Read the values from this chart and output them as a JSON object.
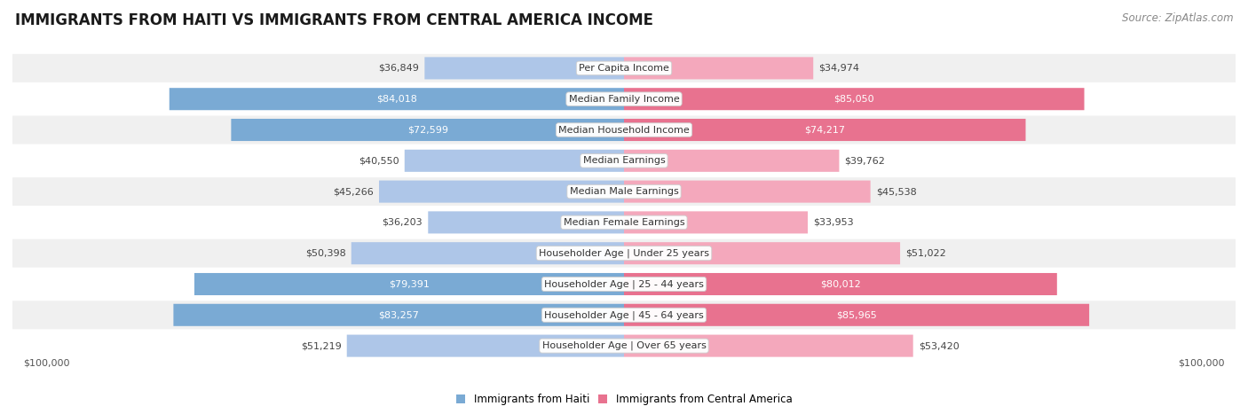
{
  "title": "IMMIGRANTS FROM HAITI VS IMMIGRANTS FROM CENTRAL AMERICA INCOME",
  "source": "Source: ZipAtlas.com",
  "categories": [
    "Per Capita Income",
    "Median Family Income",
    "Median Household Income",
    "Median Earnings",
    "Median Male Earnings",
    "Median Female Earnings",
    "Householder Age | Under 25 years",
    "Householder Age | 25 - 44 years",
    "Householder Age | 45 - 64 years",
    "Householder Age | Over 65 years"
  ],
  "haiti_values": [
    36849,
    84018,
    72599,
    40550,
    45266,
    36203,
    50398,
    79391,
    83257,
    51219
  ],
  "central_america_values": [
    34974,
    85050,
    74217,
    39762,
    45538,
    33953,
    51022,
    80012,
    85965,
    53420
  ],
  "haiti_labels": [
    "$36,849",
    "$84,018",
    "$72,599",
    "$40,550",
    "$45,266",
    "$36,203",
    "$50,398",
    "$79,391",
    "$83,257",
    "$51,219"
  ],
  "central_america_labels": [
    "$34,974",
    "$85,050",
    "$74,217",
    "$39,762",
    "$45,538",
    "$33,953",
    "$51,022",
    "$80,012",
    "$85,965",
    "$53,420"
  ],
  "haiti_color_light": "#aec6e8",
  "haiti_color_dark": "#7aaad4",
  "central_america_color_light": "#f4a8bc",
  "central_america_color_dark": "#e8728f",
  "haiti_label_inside": [
    false,
    true,
    true,
    false,
    false,
    false,
    false,
    true,
    true,
    false
  ],
  "central_america_label_inside": [
    false,
    true,
    true,
    false,
    false,
    false,
    false,
    true,
    true,
    false
  ],
  "max_value": 100000,
  "bg_color": "#ffffff",
  "row_bg_colors": [
    "#f0f0f0",
    "#ffffff",
    "#f0f0f0",
    "#ffffff",
    "#f0f0f0",
    "#ffffff",
    "#f0f0f0",
    "#ffffff",
    "#f0f0f0",
    "#ffffff"
  ],
  "legend_haiti": "Immigrants from Haiti",
  "legend_central": "Immigrants from Central America",
  "axis_label_left": "$100,000",
  "axis_label_right": "$100,000",
  "title_fontsize": 12,
  "source_fontsize": 8.5,
  "label_fontsize": 8,
  "category_fontsize": 8
}
